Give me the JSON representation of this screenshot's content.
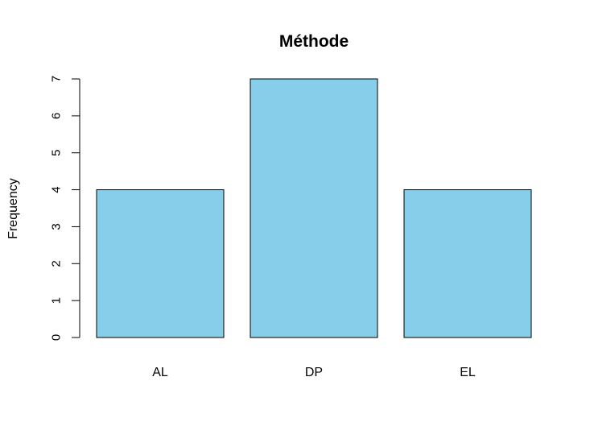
{
  "chart_data": {
    "type": "bar",
    "title": "Méthode",
    "xlabel": "",
    "ylabel": "Frequency",
    "categories": [
      "AL",
      "DP",
      "EL"
    ],
    "values": [
      4,
      7,
      4
    ],
    "ylim": [
      0,
      7
    ],
    "yticks": [
      "0",
      "1",
      "2",
      "3",
      "4",
      "5",
      "6",
      "7"
    ],
    "grid": false,
    "legend": "none",
    "bar_color": "#87CEEB",
    "bar_edge_color": "#000000"
  }
}
